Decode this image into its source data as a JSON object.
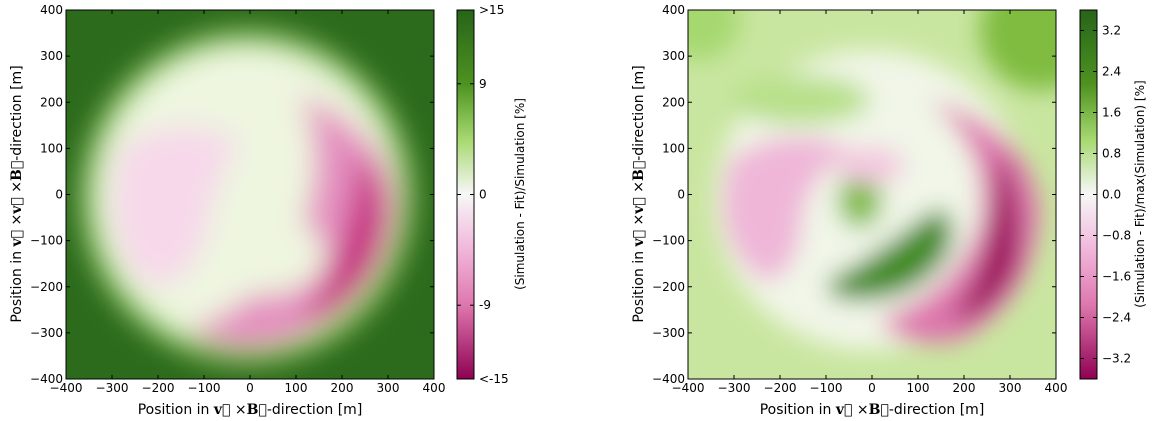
{
  "chart_data": [
    {
      "type": "heatmap",
      "xlabel": "Position in v⃗ ×B⃗-direction [m]",
      "ylabel": "Position in v⃗ ×v⃗ ×B⃗-direction [m]",
      "xlim": [
        -400,
        400
      ],
      "ylim": [
        -400,
        400
      ],
      "xticks": [
        "−400",
        "−300",
        "−200",
        "−100",
        "0",
        "100",
        "200",
        "300",
        "400"
      ],
      "yticks": [
        "−400",
        "−300",
        "−200",
        "−100",
        "0",
        "100",
        "200",
        "300",
        "400"
      ],
      "colorbar": {
        "label": "(Simulation - Fit)/Simulation [%]",
        "range": [
          -15,
          15
        ],
        "ticks": [
          {
            "value": 15,
            "label": ">15"
          },
          {
            "value": 9,
            "label": "9"
          },
          {
            "value": 0,
            "label": "0"
          },
          {
            "value": -9,
            "label": "-9"
          },
          {
            "value": -15,
            "label": "<-15"
          }
        ],
        "colors": {
          "low": "#8e0152",
          "mid": "#f7f7f7",
          "high": "#276419"
        }
      },
      "regions": [
        {
          "feature": "footprint edge",
          "x": 0,
          "y": 0,
          "r": 350,
          "value": 15
        },
        {
          "feature": "negative arc",
          "x": 320,
          "y": -30,
          "value": -12
        },
        {
          "feature": "negative arc",
          "x": 230,
          "y": -220,
          "value": -9
        },
        {
          "feature": "negative lobe",
          "x": -210,
          "y": -50,
          "value": -3
        },
        {
          "feature": "positive lobe",
          "x": 40,
          "y": -130,
          "value": 2
        }
      ]
    },
    {
      "type": "heatmap",
      "xlabel": "Position in v⃗ ×B⃗-direction [m]",
      "ylabel": "Position in v⃗ ×v⃗ ×B⃗-direction [m]",
      "xlim": [
        -400,
        400
      ],
      "ylim": [
        -400,
        400
      ],
      "xticks": [
        "−400",
        "−300",
        "−200",
        "−100",
        "0",
        "100",
        "200",
        "300",
        "400"
      ],
      "yticks": [
        "−400",
        "−300",
        "−200",
        "−100",
        "0",
        "100",
        "200",
        "300",
        "400"
      ],
      "colorbar": {
        "label": "(Simulation - Fit)/max(Simulation) [%]",
        "range": [
          -3.6,
          3.6
        ],
        "ticks": [
          {
            "value": 3.2,
            "label": "3.2"
          },
          {
            "value": 2.4,
            "label": "2.4"
          },
          {
            "value": 1.6,
            "label": "1.6"
          },
          {
            "value": 0.8,
            "label": "0.8"
          },
          {
            "value": 0.0,
            "label": "0.0"
          },
          {
            "value": -0.8,
            "label": "−0.8"
          },
          {
            "value": -1.6,
            "label": "−1.6"
          },
          {
            "value": -2.4,
            "label": "−2.4"
          },
          {
            "value": -3.2,
            "label": "−3.2"
          }
        ],
        "colors": {
          "low": "#8e0152",
          "mid": "#f7f7f7",
          "high": "#276419"
        }
      },
      "regions": [
        {
          "feature": "negative arc",
          "x": 290,
          "y": -30,
          "value": -3.6
        },
        {
          "feature": "negative arc",
          "x": 220,
          "y": -220,
          "value": -2.5
        },
        {
          "feature": "positive lobe",
          "x": 50,
          "y": -150,
          "value": 3.0
        },
        {
          "feature": "positive lobe",
          "x": -10,
          "y": 0,
          "value": 2.0
        },
        {
          "feature": "negative lobe",
          "x": -200,
          "y": -60,
          "value": -1.4
        },
        {
          "feature": "positive corner",
          "x": 350,
          "y": 360,
          "value": 1.6
        }
      ]
    }
  ]
}
